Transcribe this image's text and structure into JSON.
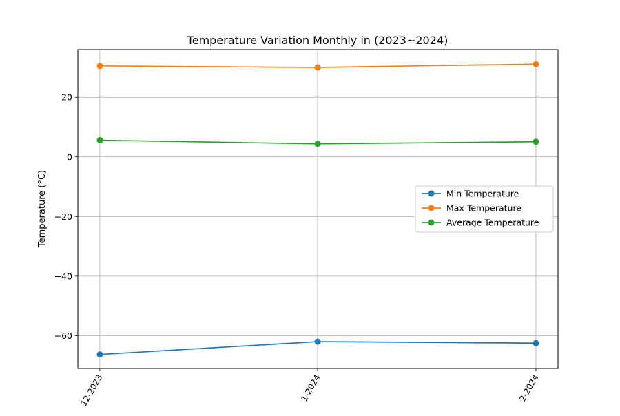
{
  "chart_data": {
    "type": "line",
    "title": "Temperature Variation Monthly in (2023~2024)",
    "xlabel": "",
    "ylabel": "Temperature (°C)",
    "categories": [
      "12-2023",
      "1-2024",
      "2-2024"
    ],
    "ylim": [
      -71,
      36
    ],
    "yticks": [
      20,
      0,
      -20,
      -40,
      -60
    ],
    "ytick_labels": [
      "20",
      "0",
      "−20",
      "−40",
      "−60"
    ],
    "grid": true,
    "legend_position": "right",
    "series": [
      {
        "name": "Min Temperature",
        "color": "#1f77b4",
        "values": [
          -66.3,
          -62.0,
          -62.5
        ]
      },
      {
        "name": "Max Temperature",
        "color": "#ff7f0e",
        "values": [
          30.5,
          30.0,
          31.1
        ]
      },
      {
        "name": "Average Temperature",
        "color": "#2ca02c",
        "values": [
          5.6,
          4.4,
          5.1
        ]
      }
    ]
  }
}
